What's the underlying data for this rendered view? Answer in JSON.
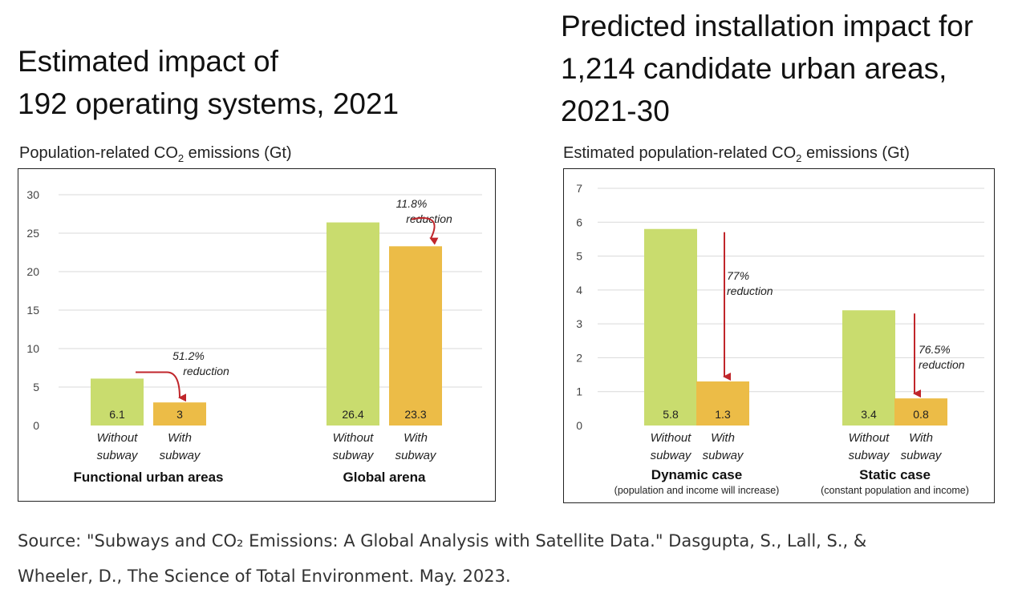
{
  "colors": {
    "without_subway": "#c9dc6e",
    "with_subway": "#ecbc47",
    "arrow": "#c0262b",
    "grid": "#d9d9d9",
    "axis_text": "#444444"
  },
  "left": {
    "title_line1": "Estimated impact of",
    "title_line2": "192 operating systems, 2021",
    "subtitle_pre": "Population-related CO",
    "subtitle_sub": "2",
    "subtitle_post": " emissions (Gt)"
  },
  "right": {
    "title_line1": "Predicted installation impact for",
    "title_line2": "1,214 candidate urban areas,",
    "title_line3": "2021-30",
    "subtitle_pre": "Estimated population-related CO",
    "subtitle_sub": "2",
    "subtitle_post": " emissions (Gt)"
  },
  "source": {
    "line1": "Source: \"Subways and CO₂ Emissions: A Global Analysis with Satellite Data.\" Dasgupta, S., Lall, S., &",
    "line2": "Wheeler, D., The Science of Total Environment. May. 2023."
  },
  "chart_data": [
    {
      "type": "bar",
      "title": "Estimated impact of 192 operating systems, 2021",
      "ylabel": "Population-related CO2 emissions (Gt)",
      "ylim": [
        0,
        30
      ],
      "yticks": [
        0,
        5,
        10,
        15,
        20,
        25,
        30
      ],
      "grid": true,
      "groups": [
        {
          "name": "Functional urban areas",
          "bars": [
            {
              "label_line1": "Without",
              "label_line2": "subway",
              "value": 6.1,
              "value_label": "6.1",
              "kind": "without_subway"
            },
            {
              "label_line1": "With",
              "label_line2": "subway",
              "value": 3,
              "value_label": "3",
              "kind": "with_subway"
            }
          ],
          "annotation_line1": "51.2%",
          "annotation_line2": "reduction"
        },
        {
          "name": "Global arena",
          "bars": [
            {
              "label_line1": "Without",
              "label_line2": "subway",
              "value": 26.4,
              "value_label": "26.4",
              "kind": "without_subway"
            },
            {
              "label_line1": "With",
              "label_line2": "subway",
              "value": 23.3,
              "value_label": "23.3",
              "kind": "with_subway"
            }
          ],
          "annotation_line1": "11.8%",
          "annotation_line2": "reduction"
        }
      ]
    },
    {
      "type": "bar",
      "title": "Predicted installation impact for 1,214 candidate urban areas, 2021-30",
      "ylabel": "Estimated population-related CO2 emissions (Gt)",
      "ylim": [
        0,
        7
      ],
      "yticks": [
        0,
        1,
        2,
        3,
        4,
        5,
        6,
        7
      ],
      "grid": true,
      "groups": [
        {
          "name": "Dynamic case",
          "note": "(population and income will increase)",
          "bars": [
            {
              "label_line1": "Without",
              "label_line2": "subway",
              "value": 5.8,
              "value_label": "5.8",
              "kind": "without_subway"
            },
            {
              "label_line1": "With",
              "label_line2": "subway",
              "value": 1.3,
              "value_label": "1.3",
              "kind": "with_subway"
            }
          ],
          "annotation_line1": "77%",
          "annotation_line2": "reduction"
        },
        {
          "name": "Static case",
          "note": "(constant population and income)",
          "bars": [
            {
              "label_line1": "Without",
              "label_line2": "subway",
              "value": 3.4,
              "value_label": "3.4",
              "kind": "without_subway"
            },
            {
              "label_line1": "With",
              "label_line2": "subway",
              "value": 0.8,
              "value_label": "0.8",
              "kind": "with_subway"
            }
          ],
          "annotation_line1": "76.5%",
          "annotation_line2": "reduction"
        }
      ]
    }
  ]
}
